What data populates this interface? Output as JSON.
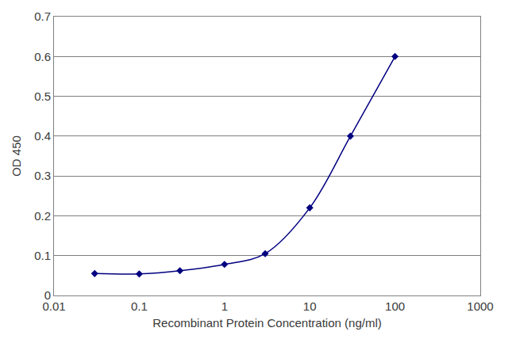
{
  "chart_data": {
    "type": "line",
    "xlabel": "Recombinant Protein Concentration (ng/ml)",
    "ylabel": "OD 450",
    "x": [
      0.03,
      0.1,
      0.3,
      1,
      3,
      10,
      30,
      100
    ],
    "values": [
      0.055,
      0.054,
      0.062,
      0.078,
      0.105,
      0.22,
      0.4,
      0.6
    ],
    "color": "#000080",
    "marker": "diamond",
    "line_style": "solid",
    "log": "x",
    "xlim": [
      0.01,
      1000
    ],
    "xticks": [
      0.01,
      0.1,
      1,
      10,
      100,
      1000
    ],
    "ylim": [
      0,
      0.7
    ],
    "yticks": [
      0,
      0.1,
      0.2,
      0.3,
      0.4,
      0.5,
      0.6,
      0.7
    ],
    "grid": true
  }
}
